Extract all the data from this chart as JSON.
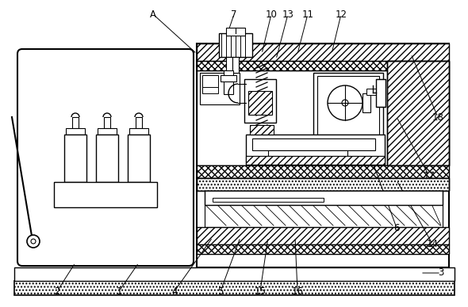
{
  "background_color": "#ffffff",
  "figsize": [
    5.9,
    3.88
  ],
  "dpi": 100,
  "labels": [
    [
      "A",
      193,
      18
    ],
    [
      "1",
      150,
      368
    ],
    [
      "2",
      72,
      368
    ],
    [
      "3",
      556,
      345
    ],
    [
      "4",
      220,
      368
    ],
    [
      "5",
      278,
      368
    ],
    [
      "6",
      500,
      288
    ],
    [
      "7",
      295,
      18
    ],
    [
      "10",
      342,
      18
    ],
    [
      "11",
      388,
      18
    ],
    [
      "12",
      430,
      18
    ],
    [
      "13",
      363,
      18
    ],
    [
      "14",
      545,
      308
    ],
    [
      "15",
      328,
      368
    ],
    [
      "16",
      375,
      368
    ],
    [
      "17",
      541,
      222
    ],
    [
      "18",
      552,
      148
    ]
  ],
  "ref_lines": [
    [
      193,
      18,
      248,
      68
    ],
    [
      295,
      18,
      285,
      48
    ],
    [
      342,
      18,
      330,
      68
    ],
    [
      363,
      18,
      348,
      75
    ],
    [
      388,
      18,
      375,
      68
    ],
    [
      430,
      18,
      418,
      68
    ],
    [
      552,
      148,
      518,
      68
    ],
    [
      541,
      222,
      500,
      148
    ],
    [
      500,
      288,
      468,
      200
    ],
    [
      545,
      308,
      500,
      228
    ],
    [
      150,
      368,
      175,
      332
    ],
    [
      72,
      368,
      95,
      332
    ],
    [
      220,
      368,
      268,
      300
    ],
    [
      278,
      368,
      303,
      300
    ],
    [
      328,
      368,
      338,
      300
    ],
    [
      375,
      368,
      372,
      300
    ],
    [
      556,
      345,
      530,
      345
    ]
  ]
}
